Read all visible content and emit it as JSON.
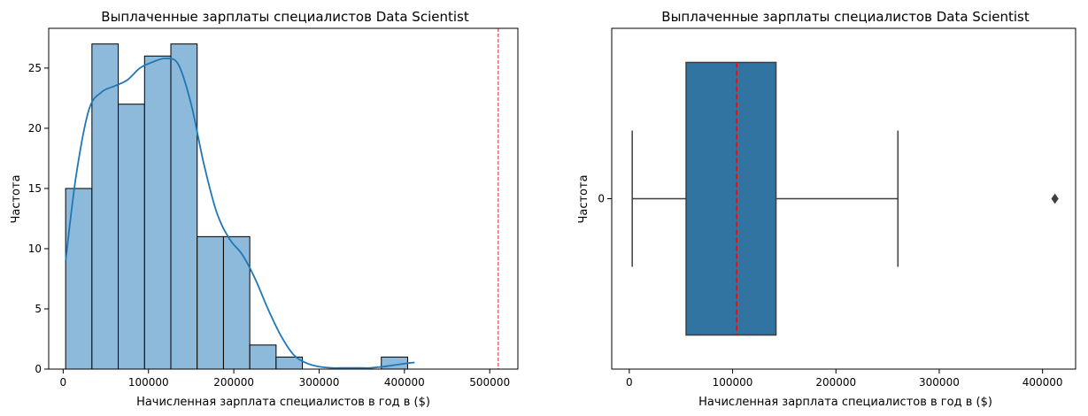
{
  "chart_data": [
    {
      "type": "histogram",
      "title": "Выплаченные зарплаты специалистов Data Scientist",
      "xlabel": "Начисленная зарплата специалистов в год в ($)",
      "ylabel": "Частота",
      "xlim": [
        -17000,
        533000
      ],
      "ylim": [
        0,
        28.3
      ],
      "xticks": [
        0,
        100000,
        200000,
        300000,
        400000,
        500000
      ],
      "xtick_labels": [
        "0",
        "100000",
        "200000",
        "300000",
        "400000",
        "500000"
      ],
      "yticks": [
        0,
        5,
        10,
        15,
        20,
        25
      ],
      "ytick_labels": [
        "0",
        "5",
        "10",
        "15",
        "20",
        "25"
      ],
      "bins": [
        {
          "x0": 2859,
          "x1": 33697,
          "count": 15
        },
        {
          "x0": 33697,
          "x1": 64535,
          "count": 27
        },
        {
          "x0": 64535,
          "x1": 95373,
          "count": 22
        },
        {
          "x0": 95373,
          "x1": 126211,
          "count": 26
        },
        {
          "x0": 126211,
          "x1": 157049,
          "count": 27
        },
        {
          "x0": 157049,
          "x1": 187887,
          "count": 11
        },
        {
          "x0": 187887,
          "x1": 218725,
          "count": 11
        },
        {
          "x0": 218725,
          "x1": 249563,
          "count": 2
        },
        {
          "x0": 249563,
          "x1": 280401,
          "count": 1
        },
        {
          "x0": 280401,
          "x1": 311239,
          "count": 0
        },
        {
          "x0": 311239,
          "x1": 342077,
          "count": 0
        },
        {
          "x0": 342077,
          "x1": 372915,
          "count": 0
        },
        {
          "x0": 372915,
          "x1": 403753,
          "count": 1
        },
        {
          "x0": 403753,
          "x1": 434591,
          "count": 0
        }
      ],
      "kde": {
        "x": [
          2859,
          15000,
          30000,
          45000,
          60000,
          75000,
          90000,
          105000,
          120000,
          135000,
          150000,
          165000,
          180000,
          195000,
          210000,
          225000,
          240000,
          255000,
          270000,
          285000,
          300000,
          315000,
          330000,
          345000,
          360000,
          375000,
          390000,
          405000,
          412000
        ],
        "y": [
          9,
          16,
          21.5,
          23,
          23.5,
          24,
          25,
          25.5,
          25.8,
          25.3,
          22,
          17,
          13,
          10.8,
          9.5,
          7.5,
          5,
          2.8,
          1.2,
          0.5,
          0.2,
          0.1,
          0.1,
          0.1,
          0.1,
          0.2,
          0.35,
          0.5,
          0.55
        ]
      },
      "reference_line": {
        "x": 510000,
        "color": "#d62728",
        "style": "dashed"
      },
      "colors": {
        "bar_fill": "#8db9da",
        "bar_edge": "#000000",
        "kde": "#1f77b4"
      }
    },
    {
      "type": "boxplot",
      "title": "Выплаченные зарплаты специалистов Data Scientist",
      "xlabel": "Начисленная зарплата специалистов в год в ($)",
      "ylabel": "Частота",
      "xlim": [
        -17000,
        432000
      ],
      "xticks": [
        0,
        100000,
        200000,
        300000,
        400000
      ],
      "xtick_labels": [
        "0",
        "100000",
        "200000",
        "300000",
        "400000"
      ],
      "ytick_labels": [
        "0"
      ],
      "box": {
        "whisker_low": 2859,
        "q1": 55000,
        "median": 104000,
        "q3": 142000,
        "whisker_high": 260000,
        "outliers": [
          412000
        ]
      },
      "colors": {
        "box_fill": "#3274a1",
        "median": "#ff0000",
        "lines": "#3f3f3f"
      }
    }
  ]
}
